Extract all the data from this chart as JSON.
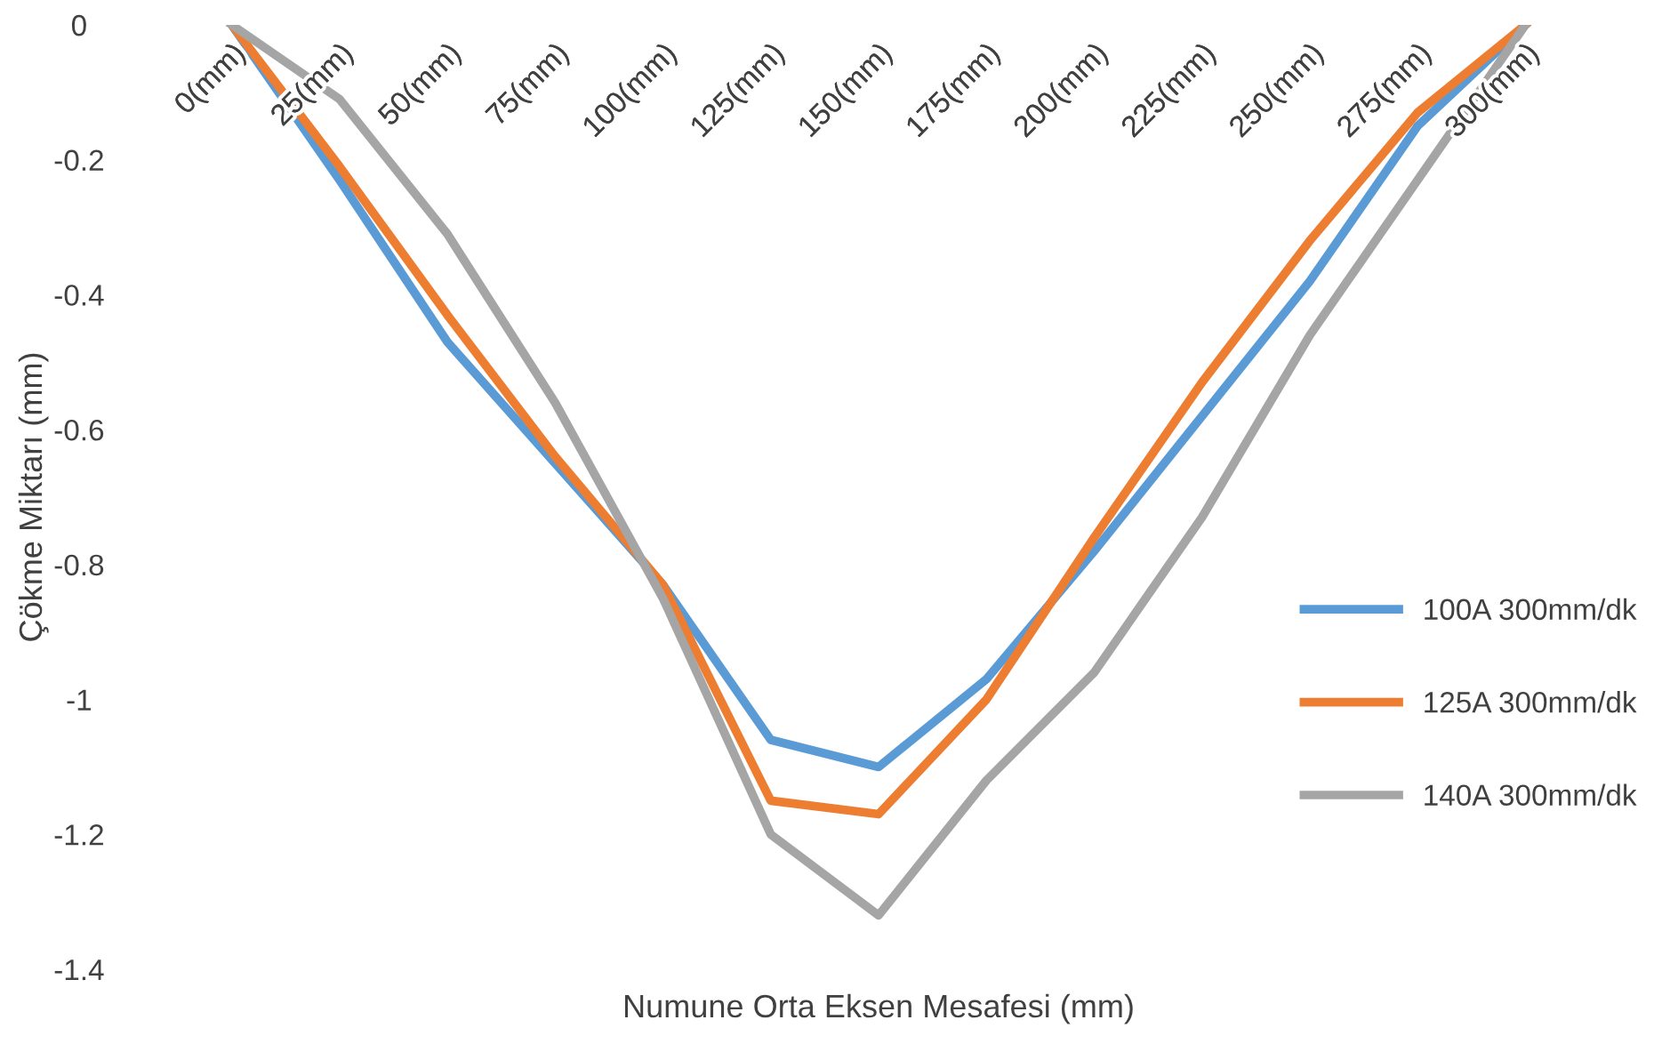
{
  "chart_data": {
    "type": "line",
    "xlabel": "Numune Orta Eksen Mesafesi (mm)",
    "ylabel": "Çökme Miktarı (mm)",
    "categories": [
      "0(mm)",
      "25(mm)",
      "50(mm)",
      "75(mm)",
      "100(mm)",
      "125(mm)",
      "150(mm)",
      "175(mm)",
      "200(mm)",
      "225(mm)",
      "250(mm)",
      "275(mm)",
      "300(mm)"
    ],
    "series": [
      {
        "name": "100A 300mm/dk",
        "color": "#5b9bd5",
        "values": [
          0,
          -0.23,
          -0.47,
          -0.65,
          -0.83,
          -1.06,
          -1.1,
          -0.97,
          -0.78,
          -0.58,
          -0.38,
          -0.15,
          0
        ]
      },
      {
        "name": "125A 300mm/dk",
        "color": "#ed7d31",
        "values": [
          0,
          -0.21,
          -0.43,
          -0.64,
          -0.83,
          -1.15,
          -1.17,
          -1.0,
          -0.76,
          -0.53,
          -0.32,
          -0.13,
          0
        ]
      },
      {
        "name": "140A 300mm/dk",
        "color": "#a5a5a5",
        "values": [
          0,
          -0.11,
          -0.31,
          -0.56,
          -0.85,
          -1.2,
          -1.32,
          -1.12,
          -0.96,
          -0.73,
          -0.46,
          -0.23,
          0
        ]
      }
    ],
    "ylim": [
      -1.4,
      0
    ],
    "yticks": [
      {
        "value": -1.4,
        "label": "-1.4"
      },
      {
        "value": -1.2,
        "label": "-1.2"
      },
      {
        "value": -1,
        "label": "-1"
      },
      {
        "value": -0.8,
        "label": "-0.8"
      },
      {
        "value": -0.6,
        "label": "-0.6"
      },
      {
        "value": -0.4,
        "label": "-0.4"
      },
      {
        "value": -0.2,
        "label": "-0.2"
      },
      0
    ],
    "grid": false,
    "legend": "right",
    "marker": "none",
    "line_style": "solid"
  }
}
